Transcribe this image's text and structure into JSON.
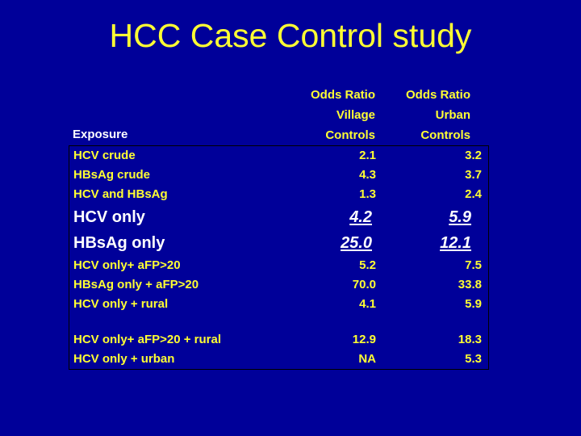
{
  "slide": {
    "title": "HCC Case Control study",
    "colors": {
      "background": "#000099",
      "title_text": "#FFFF33",
      "table_text": "#FFFF33",
      "highlight_text": "#FFFFFF",
      "table_border": "#000000"
    }
  },
  "table": {
    "header": {
      "exposure_label": "Exposure",
      "col_village": {
        "line1": "Odds Ratio",
        "line2": "Village",
        "line3": "Controls"
      },
      "col_urban": {
        "line1": "Odds Ratio",
        "line2": "Urban",
        "line3": "Controls"
      }
    },
    "rows": [
      {
        "label": "HCV crude",
        "village": "2.1",
        "urban": "3.2"
      },
      {
        "label": "HBsAg crude",
        "village": "4.3",
        "urban": "3.7"
      },
      {
        "label": "HCV and HBsAg",
        "village": "1.3",
        "urban": "2.4"
      },
      {
        "label": "HCV only",
        "village": "4.2",
        "urban": "5.9"
      },
      {
        "label": "HBsAg only",
        "village": "25.0",
        "urban": "12.1"
      },
      {
        "label": "HCV only+ aFP>20",
        "village": "5.2",
        "urban": "7.5"
      },
      {
        "label": "HBsAg only + aFP>20",
        "village": "70.0",
        "urban": "33.8"
      },
      {
        "label": "HCV only + rural",
        "village": "4.1",
        "urban": "5.9"
      },
      {
        "label": "",
        "village": "",
        "urban": ""
      },
      {
        "label": "HCV only+ aFP>20 + rural",
        "village": "12.9",
        "urban": "18.3"
      },
      {
        "label": "HCV only + urban",
        "village": "NA",
        "urban": "5.3"
      }
    ]
  },
  "chart_data": {
    "type": "table",
    "title": "HCC Case Control study",
    "columns": [
      "Exposure",
      "Odds Ratio Village Controls",
      "Odds Ratio Urban Controls"
    ],
    "rows": [
      [
        "HCV crude",
        2.1,
        3.2
      ],
      [
        "HBsAg crude",
        4.3,
        3.7
      ],
      [
        "HCV and HBsAg",
        1.3,
        2.4
      ],
      [
        "HCV only",
        4.2,
        5.9
      ],
      [
        "HBsAg only",
        25.0,
        12.1
      ],
      [
        "HCV only+ aFP>20",
        5.2,
        7.5
      ],
      [
        "HBsAg only + aFP>20",
        70.0,
        33.8
      ],
      [
        "HCV only + rural",
        4.1,
        5.9
      ],
      [
        "HCV only+ aFP>20 + rural",
        12.9,
        18.3
      ],
      [
        "HCV only + urban",
        "NA",
        5.3
      ]
    ],
    "highlighted_rows": [
      "HCV only",
      "HBsAg only"
    ]
  }
}
